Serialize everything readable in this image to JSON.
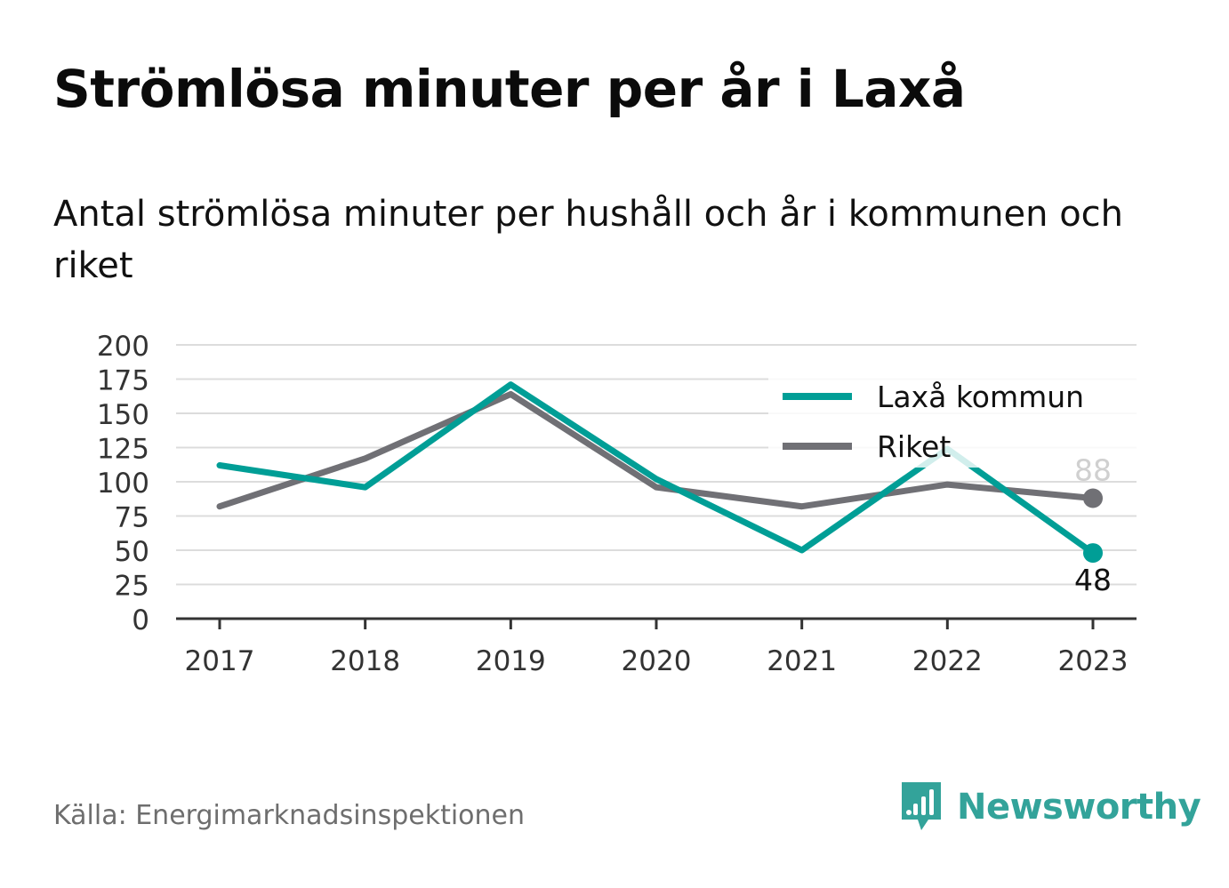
{
  "title": "Strömlösa minuter per år i Laxå",
  "subtitle": "Antal strömlösa minuter per hushåll och år i kommunen och riket",
  "source": "Källa: Energimarknadsinspektionen",
  "brand": {
    "name": "Newsworthy",
    "icon": "newsworthy-logo-icon",
    "color": "#33a39a"
  },
  "chart_data": {
    "type": "line",
    "title": "Strömlösa minuter per år i Laxå",
    "subtitle": "Antal strömlösa minuter per hushåll och år i kommunen och riket",
    "xlabel": "",
    "ylabel": "",
    "categories": [
      "2017",
      "2018",
      "2019",
      "2020",
      "2021",
      "2022",
      "2023"
    ],
    "yticks": [
      "0",
      "25",
      "50",
      "75",
      "100",
      "125",
      "150",
      "175",
      "200"
    ],
    "ylim": [
      0,
      200
    ],
    "grid": true,
    "legend_position": "top-right",
    "series": [
      {
        "name": "Laxå kommun",
        "color": "#009e96",
        "values": [
          112,
          96,
          171,
          102,
          50,
          124,
          48
        ],
        "end_label": "48"
      },
      {
        "name": "Riket",
        "color": "#707075",
        "values": [
          82,
          117,
          164,
          96,
          82,
          98,
          88
        ],
        "end_label": "88"
      }
    ]
  }
}
